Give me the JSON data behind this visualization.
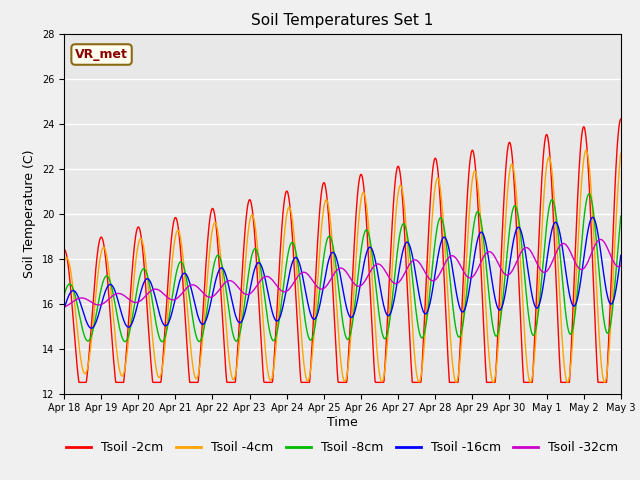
{
  "title": "Soil Temperatures Set 1",
  "xlabel": "Time",
  "ylabel": "Soil Temperature (C)",
  "ylim": [
    12,
    28
  ],
  "yticks": [
    12,
    14,
    16,
    18,
    20,
    22,
    24,
    26,
    28
  ],
  "xtick_labels": [
    "Apr 18",
    "Apr 19",
    "Apr 20",
    "Apr 21",
    "Apr 22",
    "Apr 23",
    "Apr 24",
    "Apr 25",
    "Apr 26",
    "Apr 27",
    "Apr 28",
    "Apr 29",
    "Apr 30",
    "May 1",
    "May 2",
    "May 3"
  ],
  "series_labels": [
    "Tsoil -2cm",
    "Tsoil -4cm",
    "Tsoil -8cm",
    "Tsoil -16cm",
    "Tsoil -32cm"
  ],
  "series_colors": [
    "#FF0000",
    "#FFA500",
    "#00BB00",
    "#0000FF",
    "#CC00CC"
  ],
  "annotation_text": "VR_met",
  "background_color": "#E8E8E8",
  "grid_color": "#FFFFFF",
  "title_fontsize": 11,
  "label_fontsize": 9,
  "tick_fontsize": 7,
  "legend_fontsize": 9
}
